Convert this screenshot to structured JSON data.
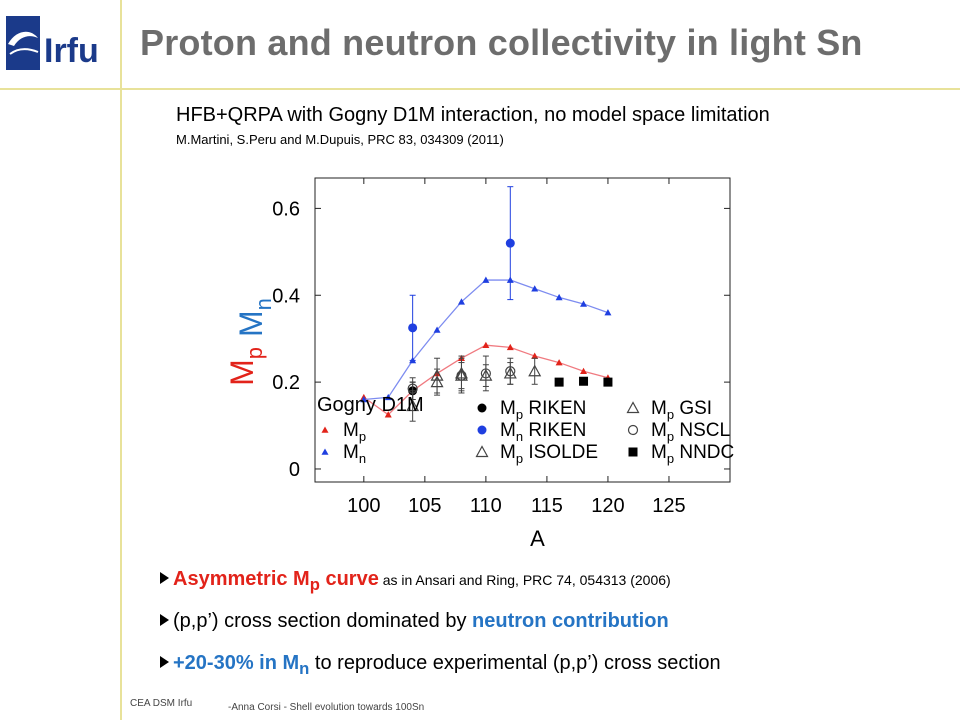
{
  "header": {
    "logo_text": "Irfu",
    "title": "Proton and neutron collectivity in light Sn"
  },
  "subtitle": "HFB+QRPA with Gogny D1M interaction, no model space limitation",
  "reference": "M.Martini, S.Peru and M.Dupuis, PRC 83, 034309 (2011)",
  "bullets": [
    {
      "parts": [
        {
          "text": "Asymmetric M",
          "cls": "red"
        },
        {
          "text": "p",
          "cls": "red",
          "sub": true
        },
        {
          "text": " curve",
          "cls": "red"
        },
        {
          "text": "   as in Ansari and Ring, PRC 74, 054313 (2006)",
          "cls": "small"
        }
      ]
    },
    {
      "parts": [
        {
          "text": "(p,p’) cross section dominated by ",
          "cls": ""
        },
        {
          "text": "neutron contribution",
          "cls": "blue"
        }
      ]
    },
    {
      "parts": [
        {
          "text": "+20-30% in M",
          "cls": "blue"
        },
        {
          "text": "n",
          "cls": "blue",
          "sub": true
        },
        {
          "text": " to reproduce experimental (p,p’) cross section",
          "cls": ""
        }
      ]
    }
  ],
  "footer": {
    "org": "CEA DSM Irfu",
    "talk": "-Anna Corsi -   Shell evolution towards 100Sn"
  },
  "colors": {
    "red": "#e2231a",
    "blue": "#1f3fe0",
    "line_red": "#f07a80",
    "line_blue": "#7d8cf0",
    "rule": "#e8e29a",
    "title": "#6d6d6d"
  },
  "chart_data": {
    "type": "scatter",
    "xlabel": "A",
    "ylabel_parts": [
      {
        "text": "M",
        "sub": "p",
        "color": "#e2231a"
      },
      {
        "text": "M",
        "sub": "n",
        "color": "#2574c4"
      }
    ],
    "xlim": [
      96,
      130
    ],
    "ylim": [
      -0.03,
      0.67
    ],
    "xticks": [
      100,
      105,
      110,
      115,
      120,
      125
    ],
    "yticks": [
      0,
      0.2,
      0.4,
      0.6
    ],
    "ytick_labels": [
      "0",
      "0.2",
      "0.4",
      "0.6"
    ],
    "legend_title": "Gogny D1M",
    "series": [
      {
        "name": "Mp",
        "sub": "p",
        "marker": "triangle",
        "color": "#e2231a",
        "line": "#f07a80",
        "legend": "left",
        "x": [
          100,
          102,
          104,
          106,
          108,
          110,
          112,
          114,
          116,
          118,
          120
        ],
        "y": [
          0.165,
          0.125,
          0.18,
          0.22,
          0.255,
          0.285,
          0.28,
          0.26,
          0.245,
          0.225,
          0.21
        ]
      },
      {
        "name": "Mn",
        "sub": "n",
        "marker": "triangle",
        "color": "#1f3fe0",
        "line": "#7d8cf0",
        "legend": "left",
        "x": [
          100,
          102,
          104,
          106,
          108,
          110,
          112,
          114,
          116,
          118,
          120
        ],
        "y": [
          0.16,
          0.165,
          0.25,
          0.32,
          0.385,
          0.435,
          0.435,
          0.415,
          0.395,
          0.38,
          0.36
        ]
      },
      {
        "name": "Mp RIKEN",
        "label": "M",
        "sub": "p",
        "suffix": " RIKEN",
        "marker": "filled-circle",
        "color": "#000000",
        "legend": "mid",
        "x": [
          104
        ],
        "y": [
          0.18
        ],
        "err": [
          0.02
        ]
      },
      {
        "name": "Mn RIKEN",
        "label": "M",
        "sub": "n",
        "suffix": " RIKEN",
        "marker": "filled-circle",
        "color": "#1f3fe0",
        "legend": "mid",
        "x": [
          104,
          112
        ],
        "y": [
          0.325,
          0.52
        ],
        "err": [
          0.075,
          0.13
        ]
      },
      {
        "name": "Mp ISOLDE",
        "label": "M",
        "sub": "p",
        "suffix": " ISOLDE",
        "marker": "open-triangle",
        "color": "#444444",
        "legend": "mid",
        "x": [
          104,
          106,
          108,
          110,
          112,
          114
        ],
        "y": [
          0.145,
          0.2,
          0.215,
          0.215,
          0.22,
          0.225
        ],
        "err": [
          0.035,
          0.03,
          0.03,
          0.025,
          0.025,
          0.03
        ]
      },
      {
        "name": "Mp GSI",
        "label": "M",
        "sub": "p",
        "suffix": " GSI",
        "marker": "open-triangle",
        "color": "#444444",
        "legend": "right",
        "x": [
          106,
          108
        ],
        "y": [
          0.215,
          0.22
        ],
        "err": [
          0.04,
          0.04
        ]
      },
      {
        "name": "Mp NSCL",
        "label": "M",
        "sub": "p",
        "suffix": " NSCL",
        "marker": "open-circle",
        "color": "#444444",
        "legend": "right",
        "x": [
          104,
          108,
          110,
          112
        ],
        "y": [
          0.185,
          0.215,
          0.22,
          0.225
        ],
        "err": [
          0.025,
          0.04,
          0.04,
          0.03
        ]
      },
      {
        "name": "Mp NNDC",
        "label": "M",
        "sub": "p",
        "suffix": " NNDC",
        "marker": "filled-square",
        "color": "#000000",
        "legend": "right",
        "x": [
          116,
          118,
          120
        ],
        "y": [
          0.2,
          0.202,
          0.2
        ]
      }
    ]
  }
}
